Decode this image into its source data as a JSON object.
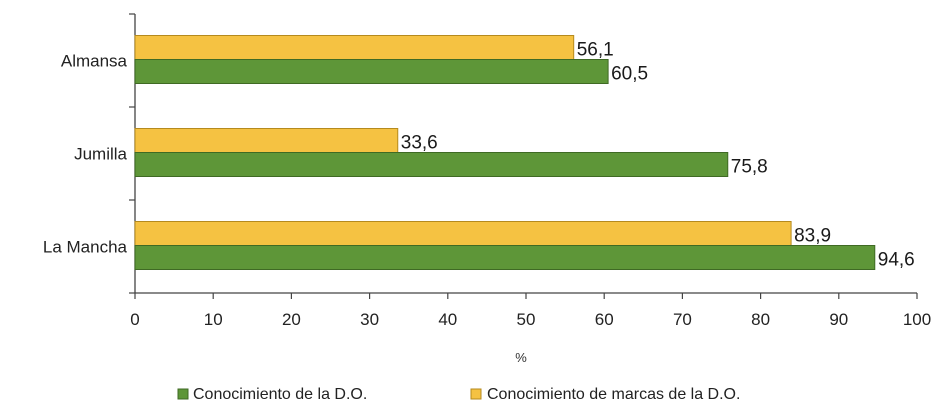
{
  "chart_data": {
    "type": "bar",
    "orientation": "horizontal",
    "categories": [
      "Almansa",
      "Jumilla",
      "La Mancha"
    ],
    "series": [
      {
        "name": "Conocimiento de marcas de la D.O.",
        "color": "#f5c242",
        "values": [
          56.1,
          33.6,
          83.9
        ],
        "labels": [
          "56,1",
          "33,6",
          "83,9"
        ]
      },
      {
        "name": "Conocimiento de la D.O.",
        "color": "#5e9638",
        "values": [
          60.5,
          75.8,
          94.6
        ],
        "labels": [
          "60,5",
          "75,8",
          "94,6"
        ]
      }
    ],
    "xlim": [
      0,
      100
    ],
    "xticks": [
      0,
      10,
      20,
      30,
      40,
      50,
      60,
      70,
      80,
      90,
      100
    ],
    "xlabel": "%",
    "legend": {
      "position": "bottom",
      "entries": [
        {
          "label": "Conocimiento de la D.O.",
          "color": "#5e9638"
        },
        {
          "label": "Conocimiento de marcas de la D.O.",
          "color": "#f5c242"
        }
      ]
    },
    "grid": false
  }
}
